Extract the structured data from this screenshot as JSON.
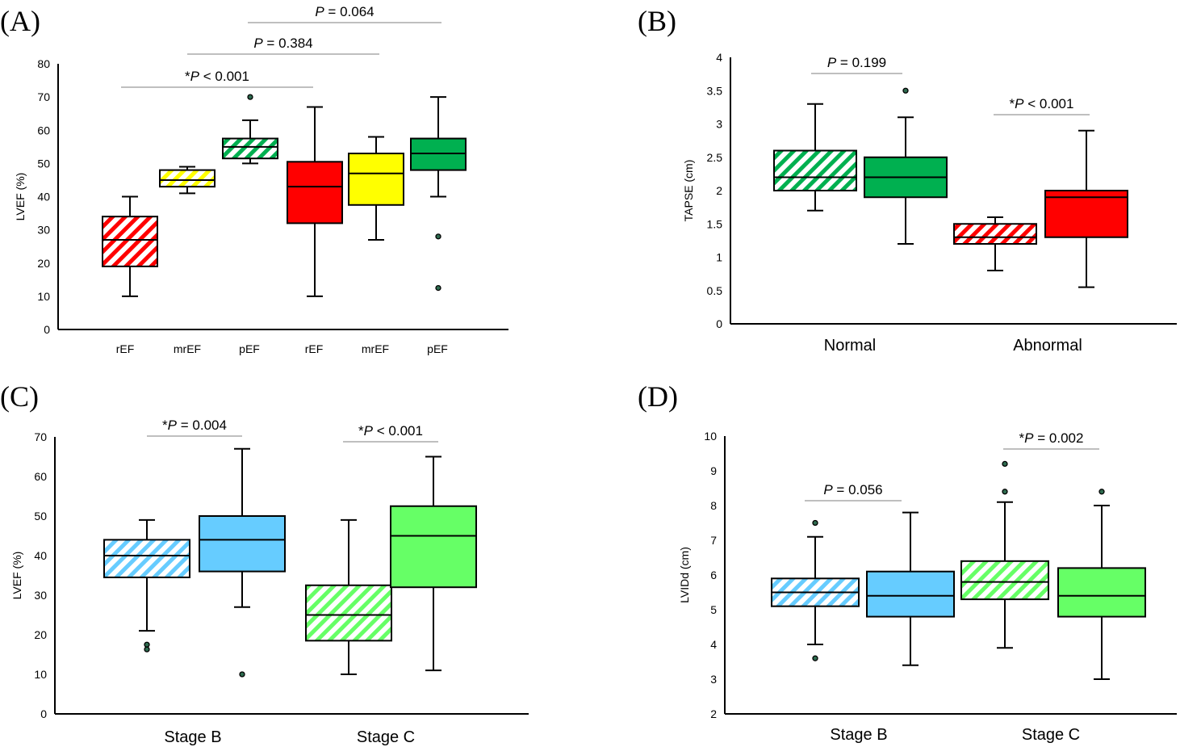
{
  "chart_data": [
    {
      "panel": "(A)",
      "type": "box",
      "ylabel": "LVEF (%)",
      "ylim": [
        0,
        80
      ],
      "yticks": [
        0,
        10,
        20,
        30,
        40,
        50,
        60,
        70,
        80
      ],
      "categories": [
        "rEF",
        "mrEF",
        "pEF",
        "rEF",
        "mrEF",
        "pEF"
      ],
      "boxes": [
        {
          "category": "rEF",
          "color": "#ff0000",
          "hatched": true,
          "min": 10,
          "q1": 19,
          "median": 27,
          "q3": 34,
          "max": 40,
          "outliers": []
        },
        {
          "category": "mrEF",
          "color": "#ffff00",
          "hatched": true,
          "min": 41,
          "q1": 43,
          "median": 45,
          "q3": 48,
          "max": 49,
          "outliers": []
        },
        {
          "category": "pEF",
          "color": "#00b050",
          "hatched": true,
          "min": 50,
          "q1": 51.5,
          "median": 55,
          "q3": 57.5,
          "max": 63,
          "outliers": [
            70
          ]
        },
        {
          "category": "rEF",
          "color": "#ff0000",
          "hatched": false,
          "min": 10,
          "q1": 32,
          "median": 43,
          "q3": 50.5,
          "max": 67,
          "outliers": []
        },
        {
          "category": "mrEF",
          "color": "#ffff00",
          "hatched": false,
          "min": 27,
          "q1": 37.5,
          "median": 47,
          "q3": 53,
          "max": 58,
          "outliers": []
        },
        {
          "category": "pEF",
          "color": "#00b050",
          "hatched": false,
          "min": 40,
          "q1": 48,
          "median": 53,
          "q3": 57.5,
          "max": 70,
          "outliers": [
            28,
            12.5
          ]
        }
      ],
      "comparisons": [
        {
          "from": 0,
          "to": 3,
          "star": "*",
          "p": "P",
          "rest": " < 0.001"
        },
        {
          "from": 1,
          "to": 4,
          "star": "",
          "p": "P",
          "rest": " = 0.384"
        },
        {
          "from": 2,
          "to": 5,
          "star": "",
          "p": "P",
          "rest": " = 0.064"
        }
      ]
    },
    {
      "panel": "(B)",
      "type": "box",
      "ylabel": "TAPSE (cm)",
      "ylim": [
        0,
        4
      ],
      "yticks": [
        0,
        0.5,
        1,
        1.5,
        2,
        2.5,
        3,
        3.5,
        4
      ],
      "categories": [
        "Normal",
        "Abnormal"
      ],
      "boxes": [
        {
          "group": "Normal",
          "color": "#00b050",
          "hatched": true,
          "min": 1.7,
          "q1": 2.0,
          "median": 2.2,
          "q3": 2.6,
          "max": 3.3,
          "outliers": []
        },
        {
          "group": "Normal",
          "color": "#00b050",
          "hatched": false,
          "min": 1.2,
          "q1": 1.9,
          "median": 2.2,
          "q3": 2.5,
          "max": 3.1,
          "outliers": [
            3.5
          ]
        },
        {
          "group": "Abnormal",
          "color": "#ff0000",
          "hatched": true,
          "min": 0.8,
          "q1": 1.2,
          "median": 1.3,
          "q3": 1.5,
          "max": 1.6,
          "outliers": []
        },
        {
          "group": "Abnormal",
          "color": "#ff0000",
          "hatched": false,
          "min": 0.55,
          "q1": 1.3,
          "median": 1.9,
          "q3": 2.0,
          "max": 2.9,
          "outliers": []
        }
      ],
      "comparisons": [
        {
          "from": 0,
          "to": 1,
          "star": "",
          "p": "P",
          "rest": " = 0.199"
        },
        {
          "from": 2,
          "to": 3,
          "star": "*",
          "p": "P",
          "rest": " < 0.001"
        }
      ]
    },
    {
      "panel": "(C)",
      "type": "box",
      "ylabel": "LVEF (%)",
      "ylim": [
        0,
        70
      ],
      "yticks": [
        0,
        10,
        20,
        30,
        40,
        50,
        60,
        70
      ],
      "categories": [
        "Stage B",
        "Stage C"
      ],
      "boxes": [
        {
          "group": "Stage B",
          "color": "#66ccff",
          "hatched": true,
          "min": 21,
          "q1": 34.5,
          "median": 40,
          "q3": 44,
          "max": 49,
          "outliers": [
            17.5,
            16.3
          ]
        },
        {
          "group": "Stage B",
          "color": "#66ccff",
          "hatched": false,
          "min": 27,
          "q1": 36,
          "median": 44,
          "q3": 50,
          "max": 67,
          "outliers": [
            10
          ]
        },
        {
          "group": "Stage C",
          "color": "#66ff66",
          "hatched": true,
          "min": 10,
          "q1": 18.5,
          "median": 25,
          "q3": 32.5,
          "max": 49,
          "outliers": []
        },
        {
          "group": "Stage C",
          "color": "#66ff66",
          "hatched": false,
          "min": 11,
          "q1": 32,
          "median": 45,
          "q3": 52.5,
          "max": 65,
          "outliers": []
        }
      ],
      "comparisons": [
        {
          "from": 0,
          "to": 1,
          "star": "*",
          "p": "P",
          "rest": " = 0.004"
        },
        {
          "from": 2,
          "to": 3,
          "star": "*",
          "p": "P",
          "rest": " < 0.001"
        }
      ]
    },
    {
      "panel": "(D)",
      "type": "box",
      "ylabel": "LVIDd (cm)",
      "ylim": [
        2,
        10
      ],
      "yticks": [
        2,
        3,
        4,
        5,
        6,
        7,
        8,
        9,
        10
      ],
      "categories": [
        "Stage B",
        "Stage C"
      ],
      "boxes": [
        {
          "group": "Stage B",
          "color": "#66ccff",
          "hatched": true,
          "min": 4.0,
          "q1": 5.1,
          "median": 5.5,
          "q3": 5.9,
          "max": 7.1,
          "outliers": [
            7.5,
            3.6
          ]
        },
        {
          "group": "Stage B",
          "color": "#66ccff",
          "hatched": false,
          "min": 3.4,
          "q1": 4.8,
          "median": 5.4,
          "q3": 6.1,
          "max": 7.8,
          "outliers": []
        },
        {
          "group": "Stage C",
          "color": "#66ff66",
          "hatched": true,
          "min": 3.9,
          "q1": 5.3,
          "median": 5.8,
          "q3": 6.4,
          "max": 8.1,
          "outliers": [
            9.2,
            8.4
          ]
        },
        {
          "group": "Stage C",
          "color": "#66ff66",
          "hatched": false,
          "min": 3.0,
          "q1": 4.8,
          "median": 5.4,
          "q3": 6.2,
          "max": 8.0,
          "outliers": [
            8.4
          ]
        }
      ],
      "comparisons": [
        {
          "from": 0,
          "to": 1,
          "star": "",
          "p": "P",
          "rest": " = 0.056"
        },
        {
          "from": 2,
          "to": 3,
          "star": "*",
          "p": "P",
          "rest": " = 0.002"
        }
      ]
    }
  ]
}
